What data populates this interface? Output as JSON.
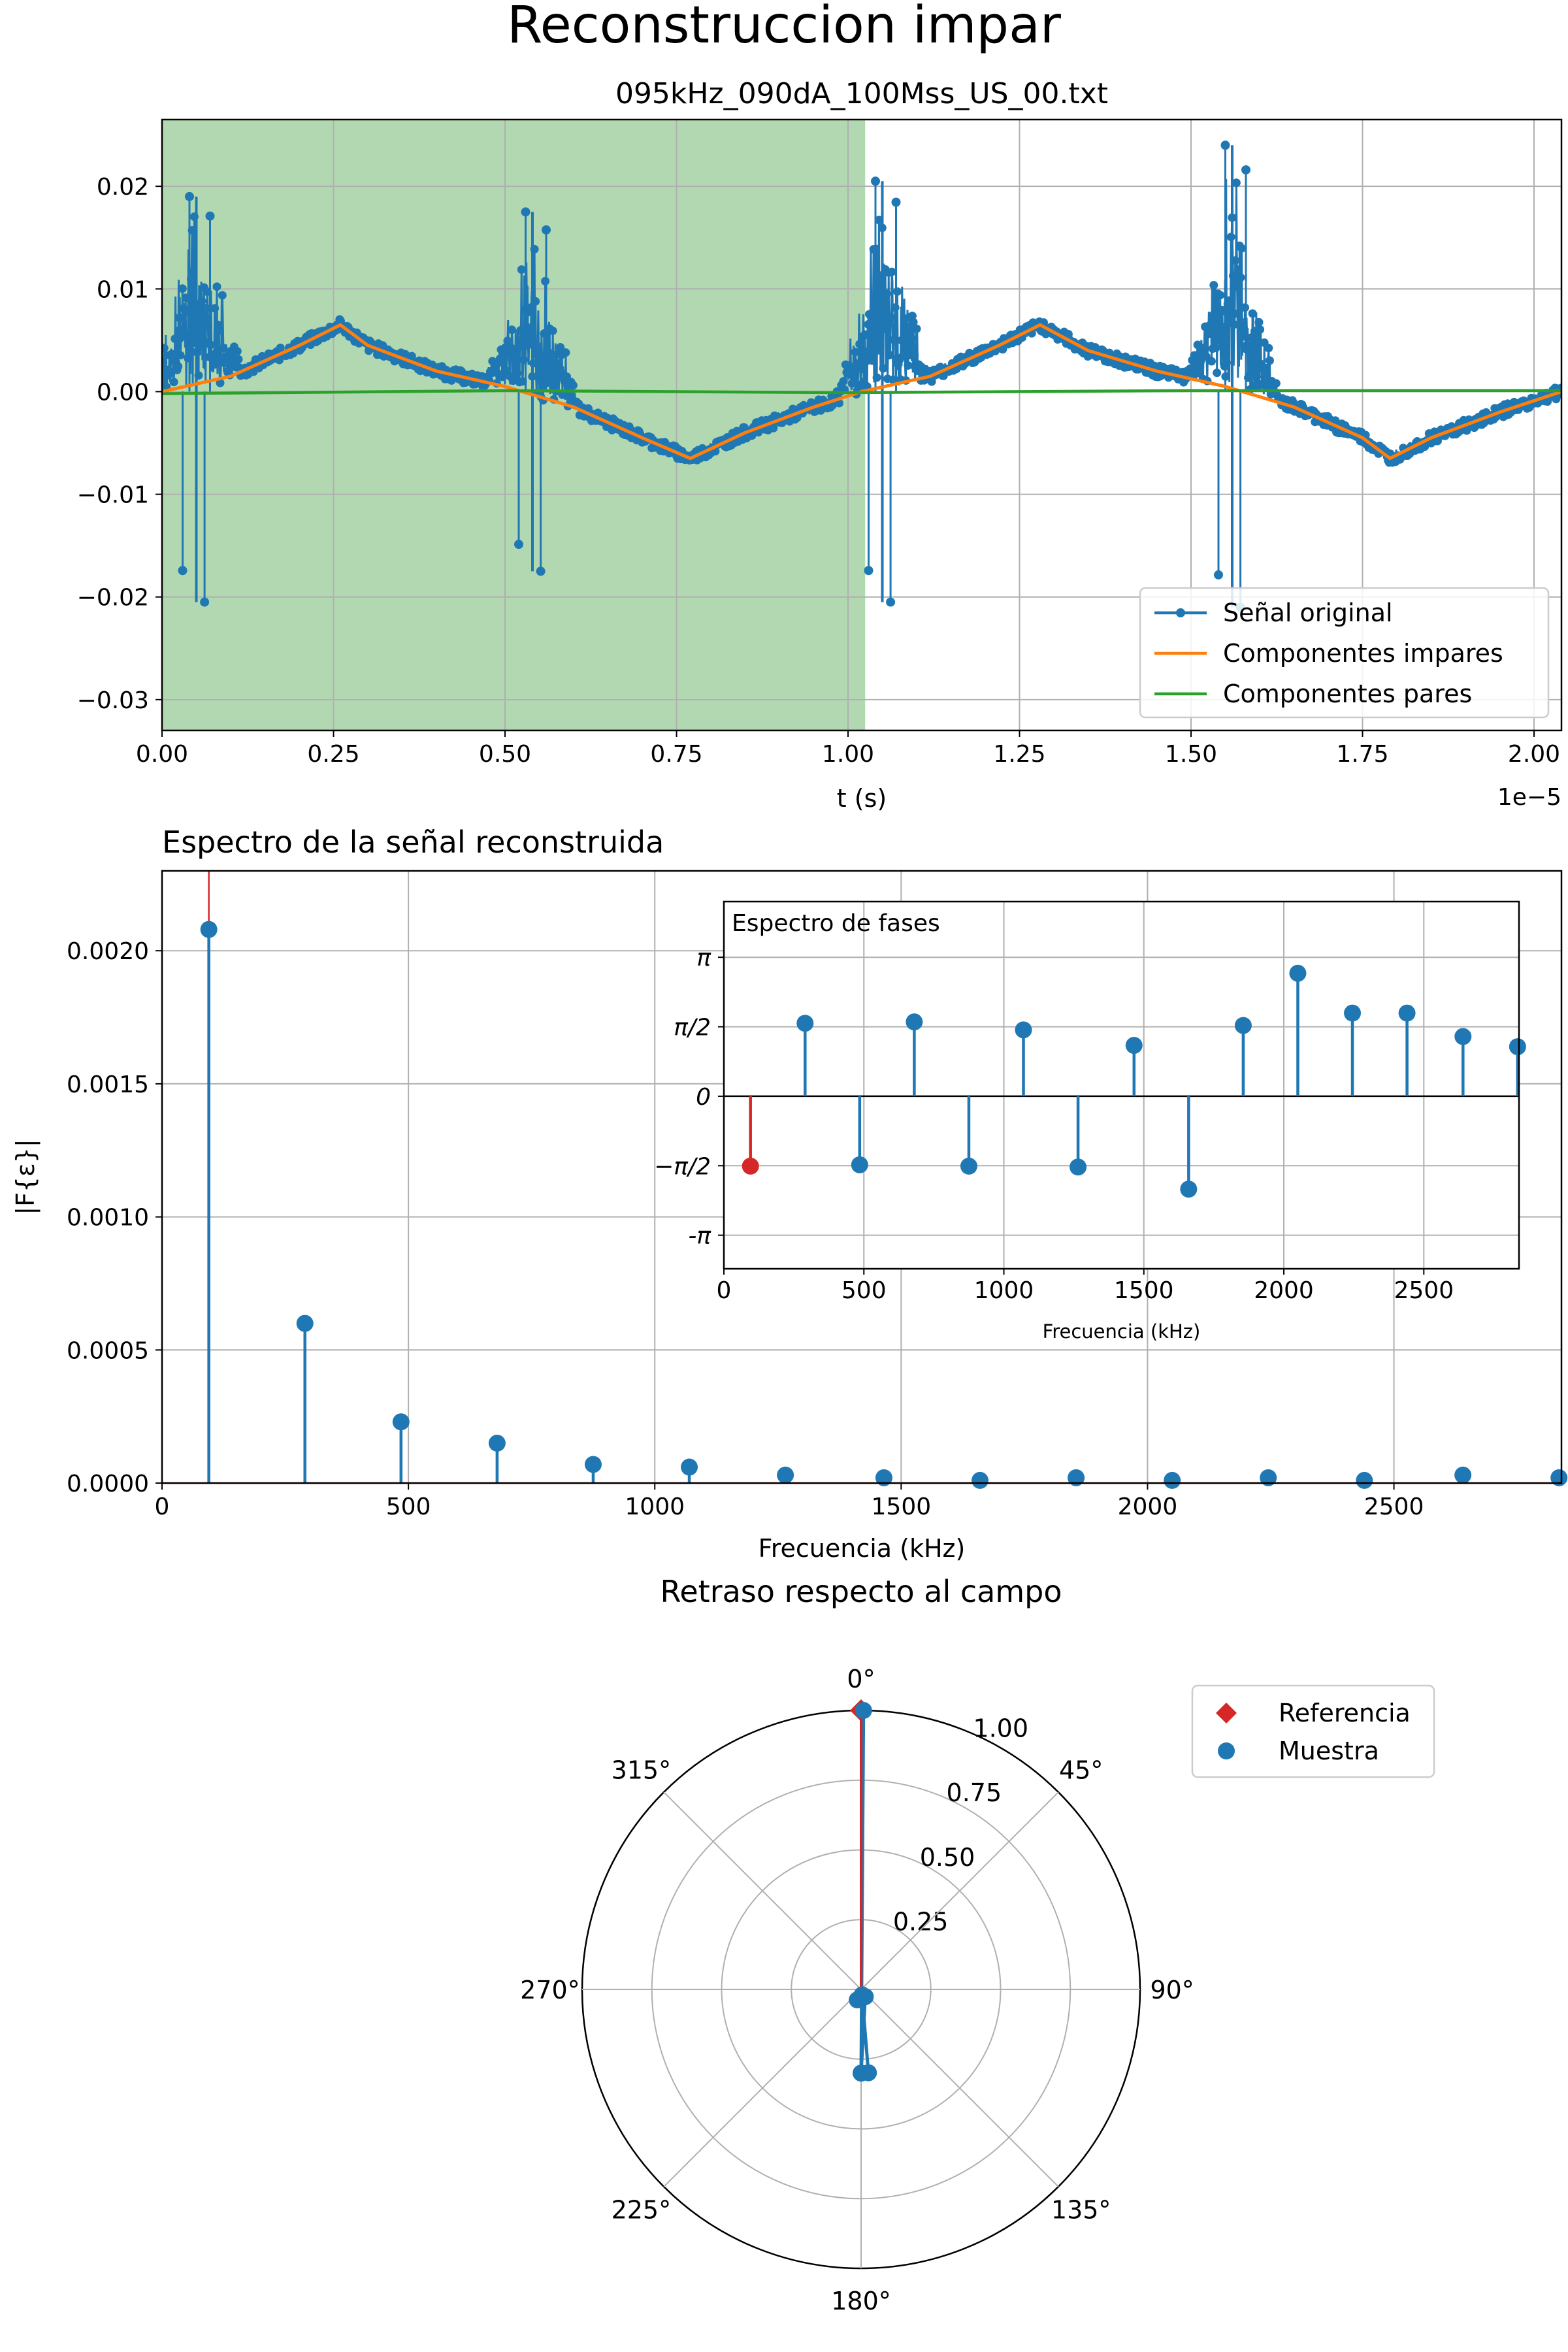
{
  "figure": {
    "suptitle": "Reconstruccion impar"
  },
  "chart_data": [
    {
      "id": "signal",
      "type": "line",
      "title": "095kHz_090dA_100Mss_US_00.txt",
      "xlabel": "t (s)",
      "x_scale_note": "1e−5",
      "xlim": [
        0.0,
        2.04
      ],
      "ylim": [
        -0.033,
        0.0265
      ],
      "xticks": [
        0.0,
        0.25,
        0.5,
        0.75,
        1.0,
        1.25,
        1.5,
        1.75,
        2.0
      ],
      "xtick_labels": [
        "0.00",
        "0.25",
        "0.50",
        "0.75",
        "1.00",
        "1.25",
        "1.50",
        "1.75",
        "2.00"
      ],
      "yticks": [
        -0.03,
        -0.02,
        -0.01,
        0.0,
        0.01,
        0.02
      ],
      "ytick_labels": [
        "−0.03",
        "−0.02",
        "−0.01",
        "0.00",
        "0.01",
        "0.02"
      ],
      "grid": true,
      "legend_position": "lower right",
      "shaded_region": {
        "x": [
          0.0,
          1.025
        ],
        "color": "#b2d8b2"
      },
      "bursts": [
        {
          "t": 0.05,
          "width": 0.07,
          "amp_max": 0.019,
          "amp_min": -0.0205
        },
        {
          "t": 0.54,
          "width": 0.07,
          "amp_max": 0.0175,
          "amp_min": -0.0175
        },
        {
          "t": 1.05,
          "width": 0.07,
          "amp_max": 0.0205,
          "amp_min": -0.0205
        },
        {
          "t": 1.56,
          "width": 0.07,
          "amp_max": 0.024,
          "amp_min": -0.021
        }
      ],
      "series": [
        {
          "name": "Señal original",
          "color": "#1f77b4",
          "marker": "circle",
          "x": [
            0.0,
            0.1,
            0.2,
            0.26,
            0.3,
            0.4,
            0.5,
            0.6,
            0.7,
            0.77,
            0.85,
            0.95,
            1.02,
            1.12,
            1.22,
            1.28,
            1.35,
            1.45,
            1.55,
            1.65,
            1.75,
            1.79,
            1.85,
            1.95,
            2.04
          ],
          "y": [
            0.0,
            0.0015,
            0.0045,
            0.0065,
            0.0045,
            0.002,
            0.0005,
            -0.0015,
            -0.0045,
            -0.0065,
            -0.004,
            -0.0015,
            0.0,
            0.0015,
            0.0045,
            0.0065,
            0.004,
            0.002,
            0.0005,
            -0.0015,
            -0.0045,
            -0.0065,
            -0.0045,
            -0.002,
            0.0
          ]
        },
        {
          "name": "Componentes impares",
          "color": "#ff7f0e",
          "x": [
            0.0,
            0.1,
            0.2,
            0.26,
            0.3,
            0.4,
            0.5,
            0.6,
            0.7,
            0.77,
            0.85,
            0.95,
            1.02,
            1.12,
            1.22,
            1.28,
            1.35,
            1.45,
            1.55,
            1.65,
            1.75,
            1.79,
            1.85,
            1.95,
            2.04
          ],
          "y": [
            0.0,
            0.0015,
            0.0045,
            0.0065,
            0.0045,
            0.002,
            0.0005,
            -0.0015,
            -0.0045,
            -0.0065,
            -0.004,
            -0.0015,
            0.0,
            0.0015,
            0.0045,
            0.0065,
            0.004,
            0.002,
            0.0005,
            -0.0015,
            -0.0045,
            -0.0065,
            -0.0045,
            -0.002,
            0.0
          ]
        },
        {
          "name": "Componentes pares",
          "color": "#2ca02c",
          "x": [
            0.0,
            0.5,
            1.0,
            1.5,
            2.04
          ],
          "y": [
            -0.0002,
            0.0001,
            -0.0001,
            0.0001,
            0.0001
          ]
        }
      ]
    },
    {
      "id": "spectrum",
      "type": "stem",
      "title": "Espectro de la señal reconstruida",
      "xlabel": "Frecuencia (kHz)",
      "ylabel": "|F{ε}|",
      "xlim": [
        0,
        2840
      ],
      "ylim": [
        0,
        0.0023
      ],
      "xticks": [
        0,
        500,
        1000,
        1500,
        2000,
        2500
      ],
      "yticks": [
        0.0,
        0.0005,
        0.001,
        0.0015,
        0.002
      ],
      "ytick_labels": [
        "0.0000",
        "0.0005",
        "0.0010",
        "0.0015",
        "0.0020"
      ],
      "grid": true,
      "reference_line": {
        "x": 95,
        "color": "#d62728"
      },
      "color": "#1f77b4",
      "x": [
        95,
        290,
        485,
        680,
        875,
        1070,
        1265,
        1465,
        1660,
        1855,
        2050,
        2245,
        2440,
        2640,
        2835
      ],
      "values": [
        0.00208,
        0.0006,
        0.00023,
        0.00015,
        7e-05,
        6e-05,
        3e-05,
        2e-05,
        1e-05,
        2e-05,
        1e-05,
        2e-05,
        1e-05,
        3e-05,
        2e-05
      ]
    },
    {
      "id": "phase",
      "type": "stem",
      "title": "Espectro de fases",
      "xlabel": "Frecuencia (kHz)",
      "xlim": [
        0,
        2840
      ],
      "ylim": [
        -3.9,
        4.4
      ],
      "xticks": [
        0,
        500,
        1000,
        1500,
        2000,
        2500
      ],
      "yticks": [
        -3.14159,
        -1.5708,
        0,
        1.5708,
        3.14159
      ],
      "ytick_labels": [
        "-π",
        "−π/2",
        "0",
        "π/2",
        "π"
      ],
      "grid": true,
      "highlight_color": "#d62728",
      "color": "#1f77b4",
      "x": [
        95,
        290,
        485,
        680,
        875,
        1070,
        1265,
        1465,
        1660,
        1855,
        2050,
        2245,
        2440,
        2640,
        2835
      ],
      "values": [
        -1.58,
        1.65,
        -1.55,
        1.68,
        -1.58,
        1.5,
        -1.6,
        1.15,
        -2.1,
        1.6,
        2.78,
        1.88,
        1.88,
        1.35,
        1.12
      ]
    },
    {
      "id": "polar",
      "type": "polar",
      "title": "Retraso respecto al campo",
      "rlim": [
        0,
        1.0
      ],
      "rticks": [
        0.25,
        0.5,
        0.75,
        1.0
      ],
      "rtick_labels": [
        "0.25",
        "0.50",
        "0.75",
        "1.00"
      ],
      "theta_labels": [
        "0°",
        "45°",
        "90°",
        "135°",
        "180°",
        "225°",
        "270°",
        "315°"
      ],
      "direction": "clockwise",
      "zero": "top",
      "legend_position": "upper right",
      "series": [
        {
          "name": "Referencia",
          "marker": "diamond",
          "color": "#d62728",
          "theta_deg": [
            0
          ],
          "r": [
            1.0
          ]
        },
        {
          "name": "Muestra",
          "marker": "circle",
          "color": "#1f77b4",
          "theta_deg": [
            0.5,
            180,
            150,
            200,
            170,
            175
          ],
          "r": [
            1.0,
            0.3,
            0.03,
            0.04,
            0.02,
            0.3
          ]
        }
      ]
    }
  ]
}
